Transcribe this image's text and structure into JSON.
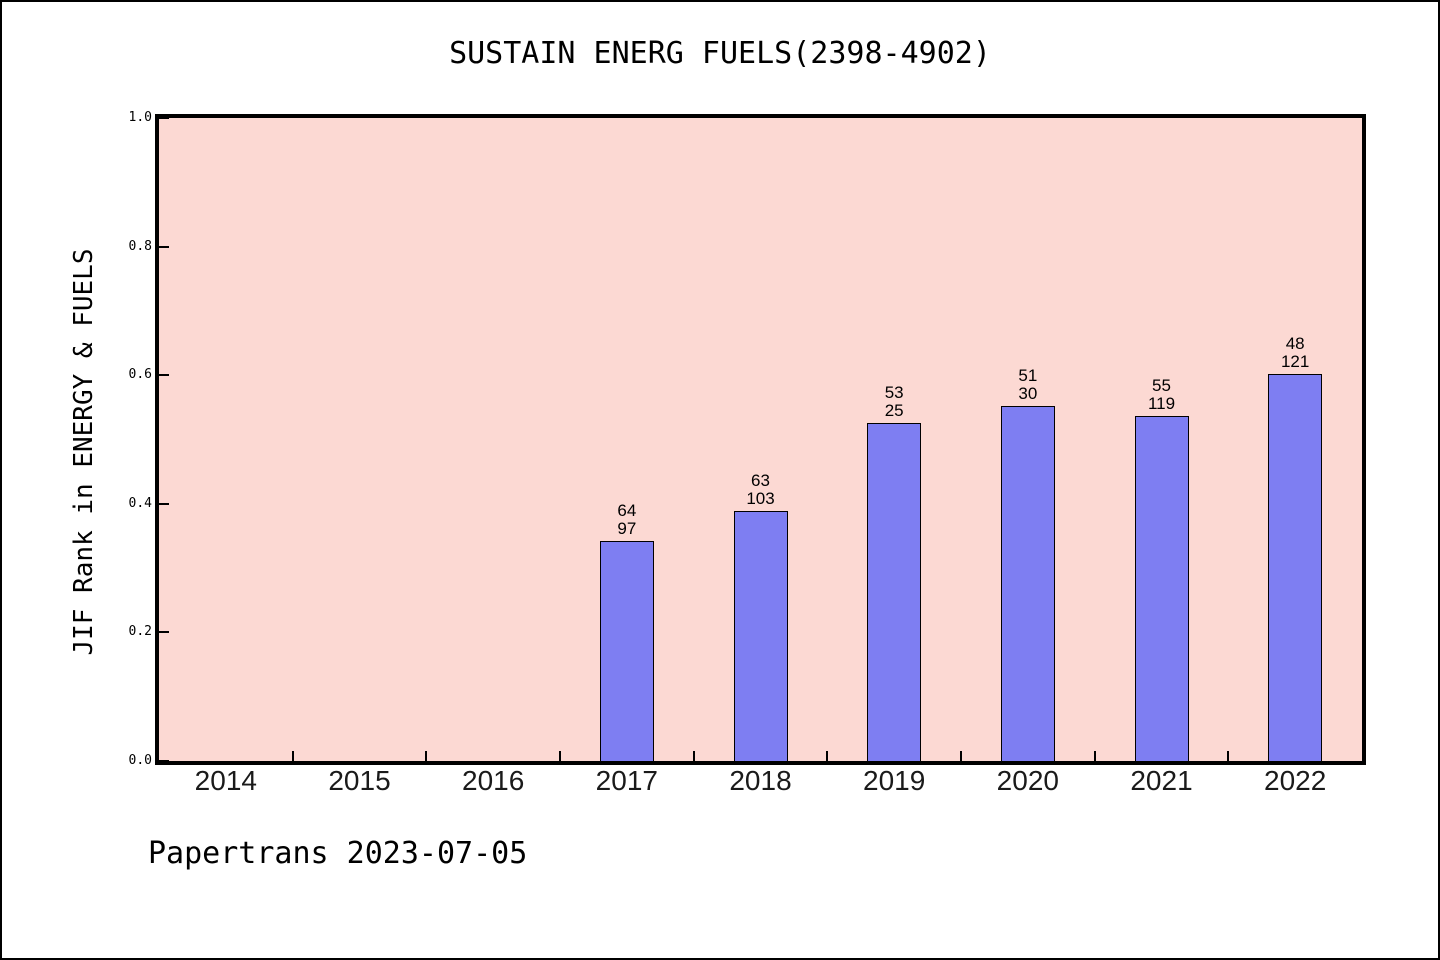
{
  "chart_data": {
    "type": "bar",
    "title": "SUSTAIN ENERG FUELS(2398-4902)",
    "ylabel": "JIF Rank in ENERGY & FUELS",
    "xlabel": "",
    "ylim": [
      0.0,
      1.0
    ],
    "ytick_labels": [
      "1.0",
      "0.8",
      "0.6",
      "0.4",
      "0.2",
      "0.0"
    ],
    "categories": [
      "2014",
      "2015",
      "2016",
      "2017",
      "2018",
      "2019",
      "2020",
      "2021",
      "2022"
    ],
    "bars": [
      {
        "year": "2017",
        "value": 0.342,
        "label_line1": "64",
        "label_line2": "97"
      },
      {
        "year": "2018",
        "value": 0.389,
        "label_line1": "63",
        "label_line2": "103"
      },
      {
        "year": "2019",
        "value": 0.526,
        "label_line1": "53",
        "label_line2": "25"
      },
      {
        "year": "2020",
        "value": 0.552,
        "label_line1": "51",
        "label_line2": "30"
      },
      {
        "year": "2021",
        "value": 0.537,
        "label_line1": "55",
        "label_line2": "119"
      },
      {
        "year": "2022",
        "value": 0.602,
        "label_line1": "48",
        "label_line2": "121"
      }
    ],
    "grid": false,
    "legend": null,
    "colors": {
      "bar_fill": "#7e7ef2",
      "bar_edge": "#000000",
      "plot_bg": "#fcd9d3",
      "axis": "#000000",
      "text": "#000000"
    }
  },
  "footer": {
    "text": "Papertrans 2023-07-05"
  }
}
